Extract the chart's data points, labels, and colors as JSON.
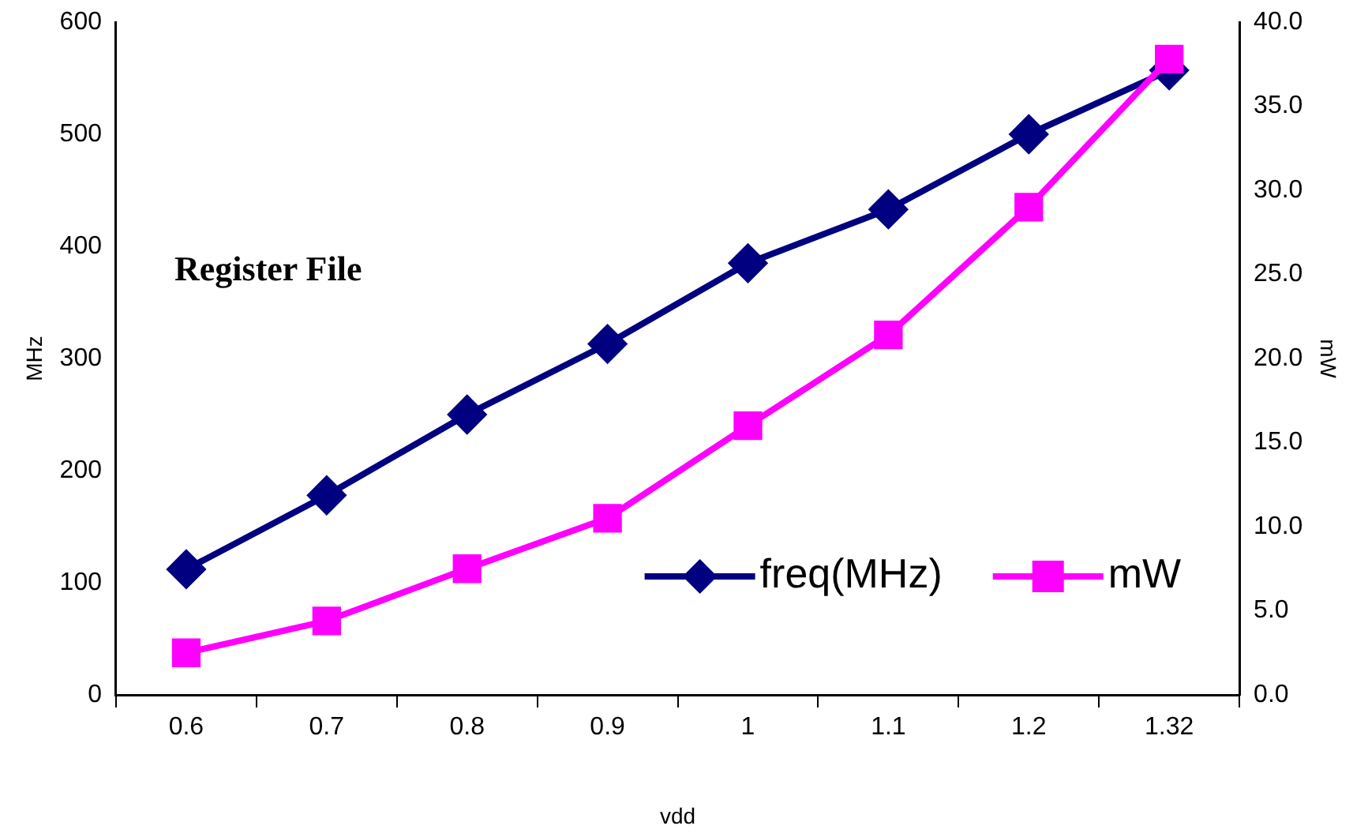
{
  "chart_data": {
    "type": "line",
    "xlabel": "vdd",
    "ylabel": "MHz",
    "y2label": "mW",
    "categories": [
      "0.6",
      "0.7",
      "0.8",
      "0.9",
      "1",
      "1.1",
      "1.2",
      "1.32"
    ],
    "series": [
      {
        "name": "freq(MHz)",
        "color": "#000080",
        "marker": "diamond",
        "values": [
          112,
          178,
          250,
          313,
          385,
          433,
          500,
          557
        ]
      },
      {
        "name": "mW",
        "color": "#ff00ff",
        "marker": "square",
        "axis": "y2",
        "values": [
          2.5,
          4.4,
          7.5,
          10.5,
          16.0,
          21.4,
          29.0,
          37.8
        ]
      }
    ],
    "ylim": [
      0,
      600
    ],
    "yticks": [
      0,
      100,
      200,
      300,
      400,
      500,
      600
    ],
    "y2lim": [
      0,
      40
    ],
    "y2ticks": [
      {
        "value": 0,
        "label": "0.0"
      },
      {
        "value": 5,
        "label": "5.0"
      },
      {
        "value": 10,
        "label": "10.0"
      },
      {
        "value": 15,
        "label": "15.0"
      },
      {
        "value": 20,
        "label": "20.0"
      },
      {
        "value": 25,
        "label": "25.0"
      },
      {
        "value": 30,
        "label": "30.0"
      },
      {
        "value": 35,
        "label": "35.0"
      },
      {
        "value": 40,
        "label": "40.0"
      }
    ],
    "annotations": [
      "Register File"
    ],
    "legend": "bottom right",
    "grid": false,
    "line_style": "solid"
  }
}
